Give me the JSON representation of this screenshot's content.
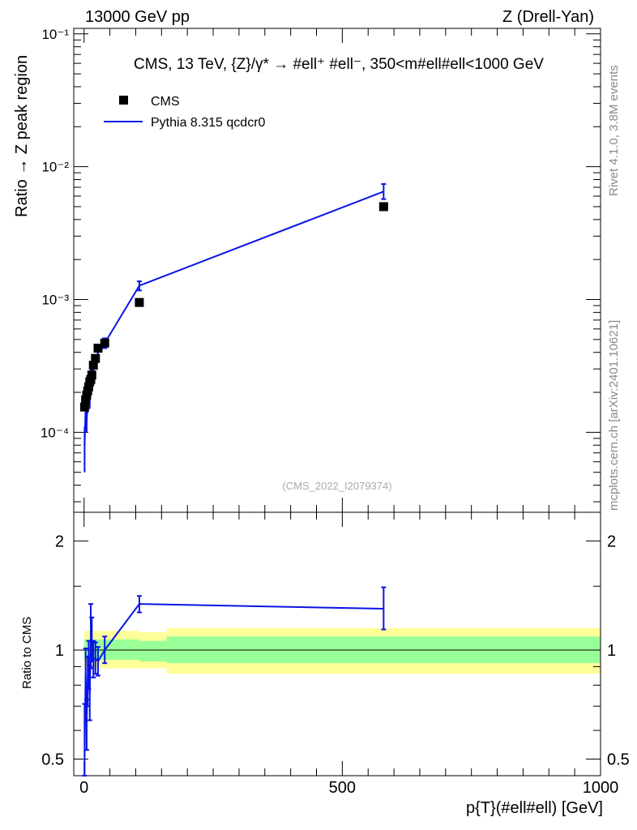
{
  "header": {
    "left": "13000 GeV pp",
    "right": "Z (Drell-Yan)"
  },
  "sidebar": {
    "rivet": "Rivet 4.1.0,  3.8M events",
    "mcplots": "mcplots.cern.ch [arXiv:2401.10621]"
  },
  "main_panel": {
    "title": "CMS, 13 TeV, {Z}/γ* → #ell⁺ #ell⁻, 350<m#ell#ell<1000 GeV",
    "ylabel": "Ratio → Z peak region",
    "watermark": "(CMS_2022_I2079374)",
    "y_ticks": [
      {
        "value": 0.0001,
        "label": "10⁻⁴"
      },
      {
        "value": 0.001,
        "label": "10⁻³"
      },
      {
        "value": 0.01,
        "label": "10⁻²"
      },
      {
        "value": 0.1,
        "label": "10⁻¹"
      }
    ]
  },
  "legend": {
    "data_label": "CMS",
    "mc_label": "Pythia 8.315 qcdcr0"
  },
  "ratio_panel": {
    "ylabel": "Ratio to CMS",
    "y_ticks": [
      {
        "value": 0.5,
        "label": "0.5"
      },
      {
        "value": 1,
        "label": "1"
      },
      {
        "value": 2,
        "label": "2"
      }
    ]
  },
  "x_axis": {
    "label": "p{T}(#ell#ell) [GeV]",
    "ticks": [
      {
        "value": 0,
        "label": "0"
      },
      {
        "value": 500,
        "label": "500"
      },
      {
        "value": 1000,
        "label": "1000"
      }
    ]
  },
  "colors": {
    "mc": "#0a14e6",
    "data": "#000000",
    "band_inner": "#99ff99",
    "band_outer": "#ffff99"
  },
  "chart_data": {
    "type": "scatter",
    "xlim": [
      -20,
      1000
    ],
    "ylim_main": [
      2.5e-05,
      0.11
    ],
    "ylim_ratio": [
      0.45,
      2.4
    ],
    "yscale": "log",
    "data": {
      "name": "CMS",
      "x": [
        1,
        3,
        5,
        7,
        9,
        11,
        13,
        15,
        18,
        22,
        27,
        40,
        107,
        580
      ],
      "y": [
        0.000155,
        0.000175,
        0.00019,
        0.000205,
        0.00022,
        0.00024,
        0.00025,
        0.00027,
        0.00032,
        0.00036,
        0.00043,
        0.00047,
        0.00095,
        0.005
      ],
      "xerr": [
        1,
        1,
        1,
        1,
        1,
        1,
        1,
        1.5,
        2.5,
        2.5,
        4,
        9,
        50,
        420
      ]
    },
    "mc": {
      "name": "Pythia 8.315 qcdcr0",
      "x": [
        1,
        3,
        5,
        7,
        9,
        11,
        13,
        15,
        18,
        22,
        27,
        40,
        107,
        580
      ],
      "y": [
        8e-05,
        0.00015,
        0.00012,
        0.00017,
        0.0002,
        0.00018,
        0.00026,
        0.00029,
        0.0003,
        0.00034,
        0.0004,
        0.00047,
        0.00127,
        0.0065
      ],
      "yerr_low": [
        3e-05,
        3e-05,
        2e-05,
        3e-05,
        3e-05,
        3e-05,
        4e-05,
        4e-05,
        3e-05,
        3e-05,
        3e-05,
        4e-05,
        0.0001,
        0.0008
      ],
      "yerr_high": [
        3e-05,
        3e-05,
        2e-05,
        3e-05,
        3e-05,
        3e-05,
        4e-05,
        4e-05,
        3e-05,
        3e-05,
        3e-05,
        4e-05,
        0.0001,
        0.0009
      ]
    },
    "ratio": {
      "x": [
        1,
        3,
        5,
        7,
        9,
        11,
        13,
        15,
        18,
        22,
        27,
        40,
        107,
        580
      ],
      "y": [
        0.51,
        0.86,
        0.63,
        0.83,
        0.91,
        0.76,
        1.04,
        1.07,
        0.94,
        0.95,
        0.93,
        1.0,
        1.34,
        1.3
      ],
      "err_low": [
        0.2,
        0.15,
        0.1,
        0.13,
        0.13,
        0.12,
        0.15,
        0.14,
        0.1,
        0.09,
        0.08,
        0.08,
        0.07,
        0.16
      ],
      "err_high": [
        0.2,
        0.15,
        0.1,
        0.13,
        0.15,
        0.14,
        0.3,
        0.16,
        0.12,
        0.1,
        0.09,
        0.09,
        0.07,
        0.19
      ]
    },
    "uncertainty_bands": [
      {
        "x_low": 0,
        "x_high": 107,
        "inner_low": 0.94,
        "inner_high": 1.07,
        "outer_low": 0.89,
        "outer_high": 1.13
      },
      {
        "x_low": 107,
        "x_high": 160,
        "inner_low": 0.93,
        "inner_high": 1.06,
        "outer_low": 0.89,
        "outer_high": 1.12
      },
      {
        "x_low": 160,
        "x_high": 1000,
        "inner_low": 0.92,
        "inner_high": 1.09,
        "outer_low": 0.86,
        "outer_high": 1.15
      }
    ]
  }
}
